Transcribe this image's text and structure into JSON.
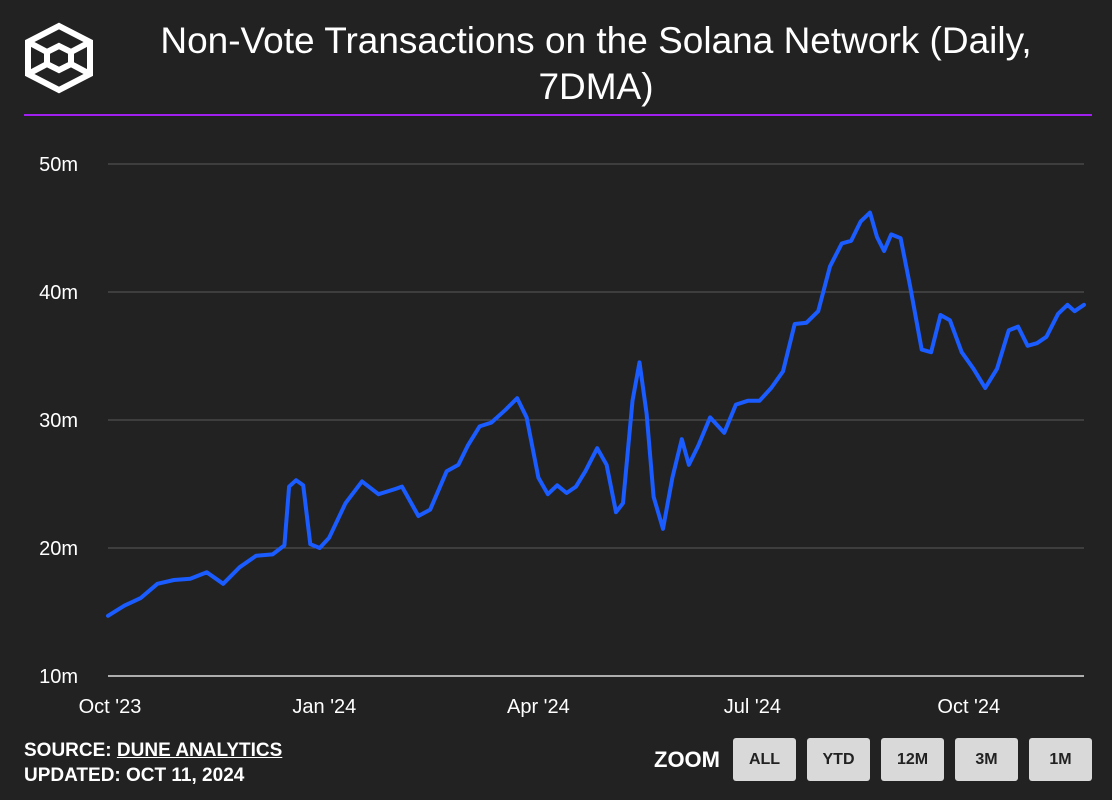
{
  "header": {
    "title": "Non-Vote Transactions on the Solana Network (Daily, 7DMA)",
    "logo_icon": "cube-logo-icon"
  },
  "footer": {
    "source_label": "SOURCE: ",
    "source_link": "DUNE ANALYTICS",
    "updated": "UPDATED: OCT 11, 2024"
  },
  "zoom": {
    "label": "ZOOM",
    "buttons": [
      "ALL",
      "YTD",
      "12M",
      "3M",
      "1M"
    ]
  },
  "colors": {
    "background": "#222222",
    "line": "#1a5cff",
    "divider": "#a020f0",
    "grid": "#5a5a5a"
  },
  "chart_data": {
    "type": "line",
    "title": "Non-Vote Transactions on the Solana Network (Daily, 7DMA)",
    "xlabel": "",
    "ylabel": "",
    "grid": true,
    "ylim": [
      10,
      50
    ],
    "y_ticks": [
      {
        "value": 10,
        "label": "10m"
      },
      {
        "value": 20,
        "label": "20m"
      },
      {
        "value": 30,
        "label": "30m"
      },
      {
        "value": 40,
        "label": "40m"
      },
      {
        "value": 50,
        "label": "50m"
      }
    ],
    "x_ticks": [
      {
        "date": "2023-10-01",
        "label": "Oct '23"
      },
      {
        "date": "2024-01-01",
        "label": "Jan '24"
      },
      {
        "date": "2024-04-01",
        "label": "Apr '24"
      },
      {
        "date": "2024-07-01",
        "label": "Jul '24"
      },
      {
        "date": "2024-10-01",
        "label": "Oct '24"
      }
    ],
    "series": [
      {
        "name": "",
        "unit": "million",
        "points": [
          [
            "2023-10-01",
            14.7
          ],
          [
            "2023-10-08",
            15.5
          ],
          [
            "2023-10-15",
            16.1
          ],
          [
            "2023-10-22",
            17.2
          ],
          [
            "2023-10-29",
            17.5
          ],
          [
            "2023-11-05",
            17.6
          ],
          [
            "2023-11-12",
            18.1
          ],
          [
            "2023-11-19",
            17.2
          ],
          [
            "2023-11-26",
            18.5
          ],
          [
            "2023-12-03",
            19.4
          ],
          [
            "2023-12-10",
            19.5
          ],
          [
            "2023-12-15",
            20.2
          ],
          [
            "2023-12-17",
            24.8
          ],
          [
            "2023-12-20",
            25.3
          ],
          [
            "2023-12-23",
            24.9
          ],
          [
            "2023-12-26",
            20.3
          ],
          [
            "2023-12-30",
            20.0
          ],
          [
            "2024-01-03",
            20.8
          ],
          [
            "2024-01-10",
            23.5
          ],
          [
            "2024-01-17",
            25.2
          ],
          [
            "2024-01-24",
            24.2
          ],
          [
            "2024-01-31",
            24.6
          ],
          [
            "2024-02-03",
            24.8
          ],
          [
            "2024-02-10",
            22.5
          ],
          [
            "2024-02-15",
            23.0
          ],
          [
            "2024-02-22",
            26.0
          ],
          [
            "2024-02-27",
            26.5
          ],
          [
            "2024-03-02",
            28.0
          ],
          [
            "2024-03-07",
            29.5
          ],
          [
            "2024-03-12",
            29.8
          ],
          [
            "2024-03-18",
            30.8
          ],
          [
            "2024-03-23",
            31.7
          ],
          [
            "2024-03-27",
            30.2
          ],
          [
            "2024-04-01",
            25.5
          ],
          [
            "2024-04-05",
            24.2
          ],
          [
            "2024-04-09",
            24.9
          ],
          [
            "2024-04-13",
            24.3
          ],
          [
            "2024-04-17",
            24.8
          ],
          [
            "2024-04-21",
            26.0
          ],
          [
            "2024-04-26",
            27.8
          ],
          [
            "2024-04-30",
            26.5
          ],
          [
            "2024-05-04",
            22.8
          ],
          [
            "2024-05-07",
            23.5
          ],
          [
            "2024-05-11",
            31.5
          ],
          [
            "2024-05-14",
            34.5
          ],
          [
            "2024-05-17",
            30.5
          ],
          [
            "2024-05-20",
            24.0
          ],
          [
            "2024-05-24",
            21.5
          ],
          [
            "2024-05-28",
            25.5
          ],
          [
            "2024-06-01",
            28.5
          ],
          [
            "2024-06-04",
            26.5
          ],
          [
            "2024-06-08",
            28.0
          ],
          [
            "2024-06-13",
            30.2
          ],
          [
            "2024-06-19",
            29.0
          ],
          [
            "2024-06-24",
            31.2
          ],
          [
            "2024-06-29",
            31.5
          ],
          [
            "2024-07-04",
            31.5
          ],
          [
            "2024-07-09",
            32.5
          ],
          [
            "2024-07-14",
            33.8
          ],
          [
            "2024-07-19",
            37.5
          ],
          [
            "2024-07-24",
            37.6
          ],
          [
            "2024-07-29",
            38.5
          ],
          [
            "2024-08-03",
            42.0
          ],
          [
            "2024-08-08",
            43.8
          ],
          [
            "2024-08-12",
            44.0
          ],
          [
            "2024-08-16",
            45.5
          ],
          [
            "2024-08-20",
            46.2
          ],
          [
            "2024-08-23",
            44.3
          ],
          [
            "2024-08-26",
            43.2
          ],
          [
            "2024-08-29",
            44.5
          ],
          [
            "2024-09-02",
            44.2
          ],
          [
            "2024-09-06",
            40.5
          ],
          [
            "2024-09-11",
            35.5
          ],
          [
            "2024-09-15",
            35.3
          ],
          [
            "2024-09-19",
            38.2
          ],
          [
            "2024-09-23",
            37.8
          ],
          [
            "2024-09-28",
            35.3
          ],
          [
            "2024-10-03",
            34.0
          ],
          [
            "2024-10-08",
            32.5
          ],
          [
            "2024-10-13",
            34.0
          ],
          [
            "2024-10-18",
            37.0
          ],
          [
            "2024-10-22",
            37.3
          ],
          [
            "2024-10-26",
            35.8
          ],
          [
            "2024-10-30",
            36.0
          ],
          [
            "2024-11-03",
            36.5
          ],
          [
            "2024-11-08",
            38.3
          ],
          [
            "2024-11-12",
            39.0
          ],
          [
            "2024-11-15",
            38.5
          ],
          [
            "2024-11-19",
            39.0
          ]
        ]
      }
    ]
  }
}
